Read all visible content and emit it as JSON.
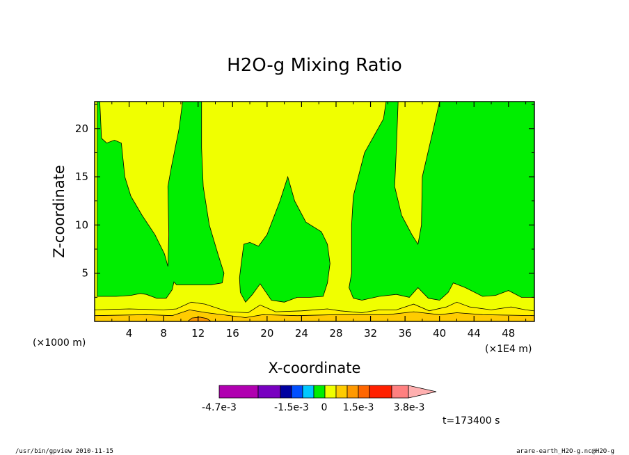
{
  "chart_data": {
    "type": "heatmap",
    "title": "H2O-g Mixing Ratio",
    "xlabel": "X-coordinate",
    "ylabel": "Z-coordinate",
    "x_unit_left": "(×1000 m)",
    "x_unit_right": "(×1E4 m)",
    "xlim": [
      0,
      51
    ],
    "ylim": [
      0,
      22.8
    ],
    "x_ticks": [
      4,
      8,
      12,
      16,
      20,
      24,
      28,
      32,
      36,
      40,
      44,
      48
    ],
    "x_tick_labels": [
      "4",
      "8",
      "12",
      "16",
      "20",
      "24",
      "28",
      "32",
      "36",
      "40",
      "44",
      "48"
    ],
    "y_ticks": [
      5,
      10,
      15,
      20
    ],
    "y_tick_labels": [
      "5",
      "10",
      "15",
      "20"
    ],
    "colorbar": {
      "colors": [
        "#b000b0",
        "#7800c0",
        "#0000a0",
        "#0050ff",
        "#00c8ff",
        "#00ee00",
        "#f0ff00",
        "#ffcc00",
        "#ff9900",
        "#ff6600",
        "#ff2000",
        "#ff8080",
        "#ffb0b0"
      ],
      "labels": [
        "-4.7e-3",
        "-1.5e-3",
        "0",
        "1.5e-3",
        "3.8e-3"
      ]
    },
    "time_label": "t=173400 s",
    "footer_left": "/usr/bin/gpview  2010-11-15",
    "footer_right": "arare-earth_H2O-g.nc@H2O-g",
    "region_colors": {
      "low": "#00ee00",
      "mid": "#f0ff00",
      "high1": "#ffcc00",
      "high2": "#ff9900"
    }
  }
}
